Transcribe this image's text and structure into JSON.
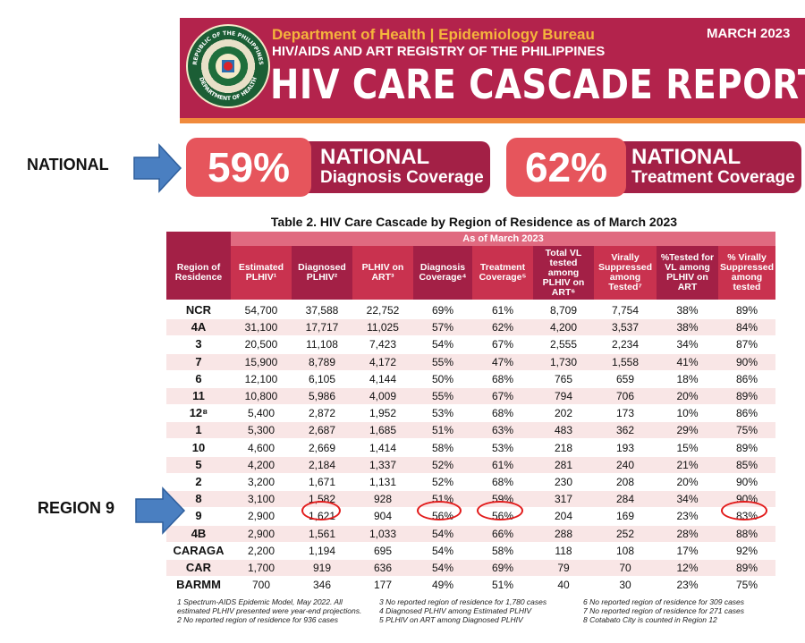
{
  "header": {
    "department": "Department of Health | Epidemiology Bureau",
    "registry": "HIV/AIDS AND ART REGISTRY OF THE PHILIPPINES",
    "title": "HIV CARE CASCADE REPORT",
    "date": "MARCH 2023",
    "seal_top": "REPUBLIC OF THE PHILIPPINES",
    "seal_bottom": "DEPARTMENT OF HEALTH"
  },
  "side_labels": {
    "national": "NATIONAL",
    "region": "REGION 9"
  },
  "cards": [
    {
      "pct": "59%",
      "line1": "NATIONAL",
      "line2": "Diagnosis Coverage"
    },
    {
      "pct": "62%",
      "line1": "NATIONAL",
      "line2": "Treatment Coverage"
    }
  ],
  "table": {
    "title": "Table 2. HIV Care Cascade by Region of Residence as of March 2023",
    "as_of": "As of March 2023",
    "headers": [
      "Region of Residence",
      "Estimated PLHIV¹",
      "Diagnosed PLHIV²",
      "PLHIV on ART³",
      "Diagnosis Coverage⁴",
      "Treatment Coverage⁵",
      "Total VL tested among PLHIV on ART⁶",
      "Virally Suppressed among Tested⁷",
      "%Tested for VL among PLHIV on ART",
      "% Virally Suppressed among tested"
    ],
    "rows": [
      [
        "NCR",
        "54,700",
        "37,588",
        "22,752",
        "69%",
        "61%",
        "8,709",
        "7,754",
        "38%",
        "89%"
      ],
      [
        "4A",
        "31,100",
        "17,717",
        "11,025",
        "57%",
        "62%",
        "4,200",
        "3,537",
        "38%",
        "84%"
      ],
      [
        "3",
        "20,500",
        "11,108",
        "7,423",
        "54%",
        "67%",
        "2,555",
        "2,234",
        "34%",
        "87%"
      ],
      [
        "7",
        "15,900",
        "8,789",
        "4,172",
        "55%",
        "47%",
        "1,730",
        "1,558",
        "41%",
        "90%"
      ],
      [
        "6",
        "12,100",
        "6,105",
        "4,144",
        "50%",
        "68%",
        "765",
        "659",
        "18%",
        "86%"
      ],
      [
        "11",
        "10,800",
        "5,986",
        "4,009",
        "55%",
        "67%",
        "794",
        "706",
        "20%",
        "89%"
      ],
      [
        "12⁸",
        "5,400",
        "2,872",
        "1,952",
        "53%",
        "68%",
        "202",
        "173",
        "10%",
        "86%"
      ],
      [
        "1",
        "5,300",
        "2,687",
        "1,685",
        "51%",
        "63%",
        "483",
        "362",
        "29%",
        "75%"
      ],
      [
        "10",
        "4,600",
        "2,669",
        "1,414",
        "58%",
        "53%",
        "218",
        "193",
        "15%",
        "89%"
      ],
      [
        "5",
        "4,200",
        "2,184",
        "1,337",
        "52%",
        "61%",
        "281",
        "240",
        "21%",
        "85%"
      ],
      [
        "2",
        "3,200",
        "1,671",
        "1,131",
        "52%",
        "68%",
        "230",
        "208",
        "20%",
        "90%"
      ],
      [
        "8",
        "3,100",
        "1,582",
        "928",
        "51%",
        "59%",
        "317",
        "284",
        "34%",
        "90%"
      ],
      [
        "9",
        "2,900",
        "1,621",
        "904",
        "56%",
        "56%",
        "204",
        "169",
        "23%",
        "83%"
      ],
      [
        "4B",
        "2,900",
        "1,561",
        "1,033",
        "54%",
        "66%",
        "288",
        "252",
        "28%",
        "88%"
      ],
      [
        "CARAGA",
        "2,200",
        "1,194",
        "695",
        "54%",
        "58%",
        "118",
        "108",
        "17%",
        "92%"
      ],
      [
        "CAR",
        "1,700",
        "919",
        "636",
        "54%",
        "69%",
        "79",
        "70",
        "12%",
        "89%"
      ],
      [
        "BARMM",
        "700",
        "346",
        "177",
        "49%",
        "51%",
        "40",
        "30",
        "23%",
        "75%"
      ]
    ]
  },
  "footnotes": [
    "1 Spectrum-AIDS Epidemic Model, May 2022. All",
    "estimated PLHIV presented were year-end projections.",
    "2 No reported region of residence for 936 cases",
    "3 No reported region of residence for  1,780 cases",
    "4 Diagnosed PLHIV among Estimated PLHIV",
    "5 PLHIV on ART among Diagnosed PLHIV",
    "6 No reported region of residence for 309 cases",
    "7 No reported region of residence for 271 cases",
    "8 Cotabato City is counted in Region 12"
  ],
  "colors": {
    "banner": "#b3234c",
    "accent_orange": "#f08a3c",
    "gold": "#f5b43c",
    "card_pct": "#e6555c",
    "card_label": "#a32046",
    "arrow": "#4a7fc1",
    "highlight_circle": "#e21b1b"
  }
}
